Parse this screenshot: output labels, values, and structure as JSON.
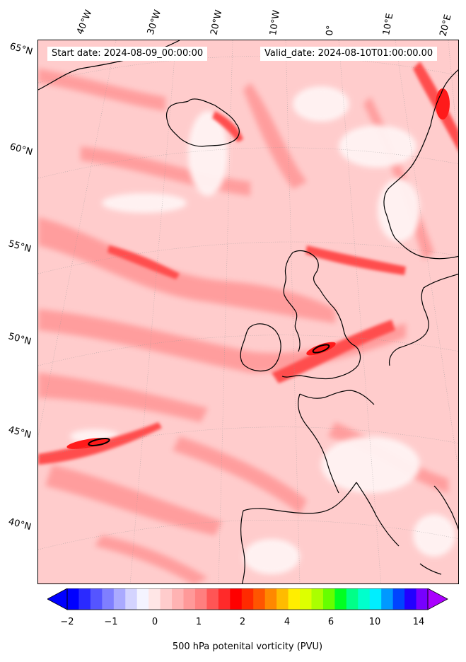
{
  "header": {
    "start_date": "Start date: 2024-08-09_00:00:00",
    "valid_date": "Valid_date: 2024-08-10T01:00:00.00"
  },
  "latitude_labels": [
    "65°N",
    "60°N",
    "55°N",
    "50°N",
    "45°N",
    "40°N"
  ],
  "longitude_labels": [
    "40°W",
    "30°W",
    "20°W",
    "10°W",
    "0°",
    "10°E",
    "20°E"
  ],
  "colorbar": {
    "label": "500 hPa potenital vorticity (PVU)",
    "tick_labels": [
      "−2",
      "−1",
      "0",
      "1",
      "2",
      "4",
      "6",
      "10",
      "14"
    ],
    "colors": [
      "#0000ff",
      "#2a2aff",
      "#5555ff",
      "#7f7fff",
      "#aaaaff",
      "#d4d4ff",
      "#f4f4ff",
      "#ffe6e6",
      "#ffcccc",
      "#ffb3b3",
      "#ff9999",
      "#ff7f7f",
      "#ff5555",
      "#ff2a2a",
      "#ff0000",
      "#ff2a00",
      "#ff5500",
      "#ff8800",
      "#ffbb00",
      "#ffee00",
      "#ddff00",
      "#aaff00",
      "#66ff00",
      "#00ff22",
      "#00ff88",
      "#00ffcc",
      "#00eeff",
      "#0099ff",
      "#0044ff",
      "#2200ff",
      "#7700ff"
    ],
    "min_arrow_color": "#0000ff",
    "max_arrow_color": "#aa00ff"
  },
  "colors": {
    "background_pv": "#ffcccc",
    "low_pv": "#fff0f0",
    "mid_pv": "#ff9999",
    "high_pv": "#ff4d4d",
    "peak_pv": "#ff1a1a",
    "coastline": "#000000"
  }
}
